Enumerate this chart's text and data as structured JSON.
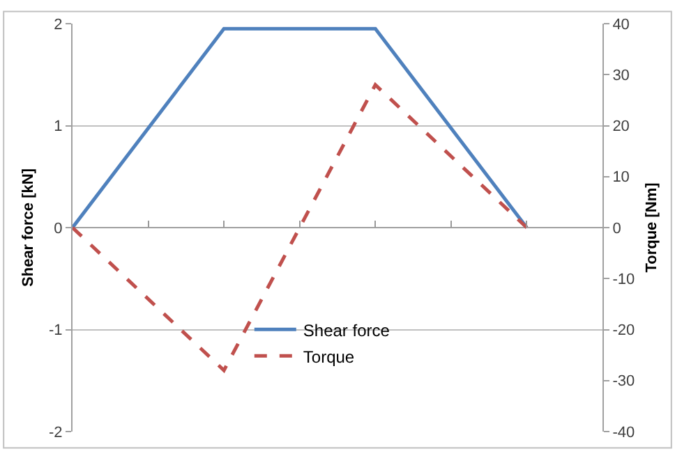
{
  "chart_data": {
    "type": "line",
    "categories": [
      null,
      null,
      null,
      null
    ],
    "ylabel": "Shear force [kN]",
    "y2label": "Torque [Nm]",
    "ylim": [
      -2,
      2
    ],
    "yticks": [
      -2,
      -1,
      0,
      1,
      2
    ],
    "y2lim": [
      -40,
      40
    ],
    "y2ticks": [
      -40,
      -30,
      -20,
      -10,
      0,
      10,
      20,
      30,
      40
    ],
    "grid": "y",
    "legend": "bottom",
    "marker": "none",
    "series": [
      {
        "name": "Shear force",
        "color": "#4f81bd",
        "values": [
          0,
          1.95,
          1.95,
          0
        ],
        "line_style": "solid"
      },
      {
        "name": "Torque",
        "color": "#c0504d",
        "values": [
          0,
          -28,
          28,
          0
        ],
        "line_style": "dashed",
        "axis": "y2"
      }
    ]
  }
}
